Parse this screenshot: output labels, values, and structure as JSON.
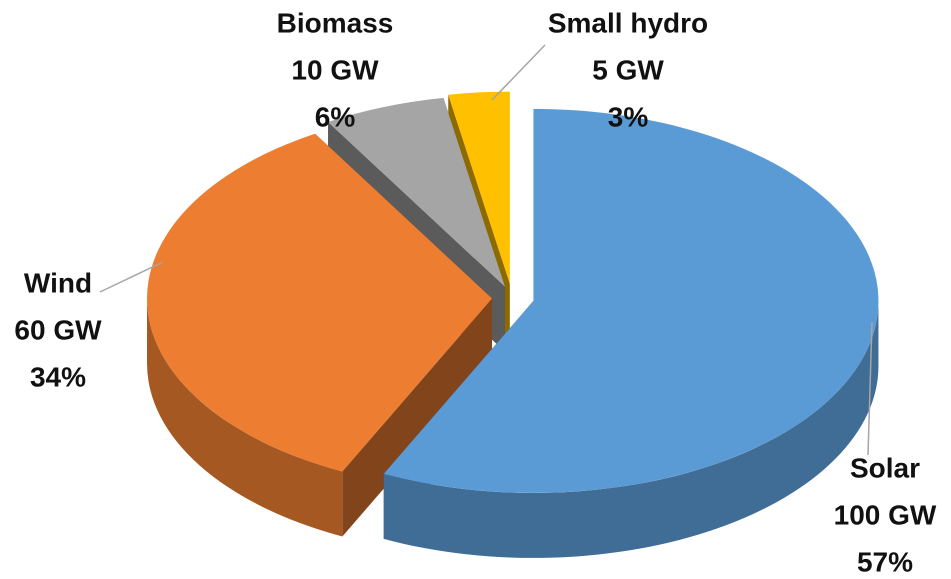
{
  "chart_data": {
    "type": "pie",
    "categories": [
      "Solar",
      "Wind",
      "Biomass",
      "Small hydro"
    ],
    "values": [
      100,
      60,
      10,
      5
    ],
    "value_labels": [
      "100 GW",
      "60 GW",
      "10 GW",
      "5 GW"
    ],
    "percent_labels": [
      "57%",
      "34%",
      "6%",
      "3%"
    ],
    "colors": [
      "#5b9bd5",
      "#ed7d31",
      "#a5a5a5",
      "#ffc000"
    ]
  }
}
